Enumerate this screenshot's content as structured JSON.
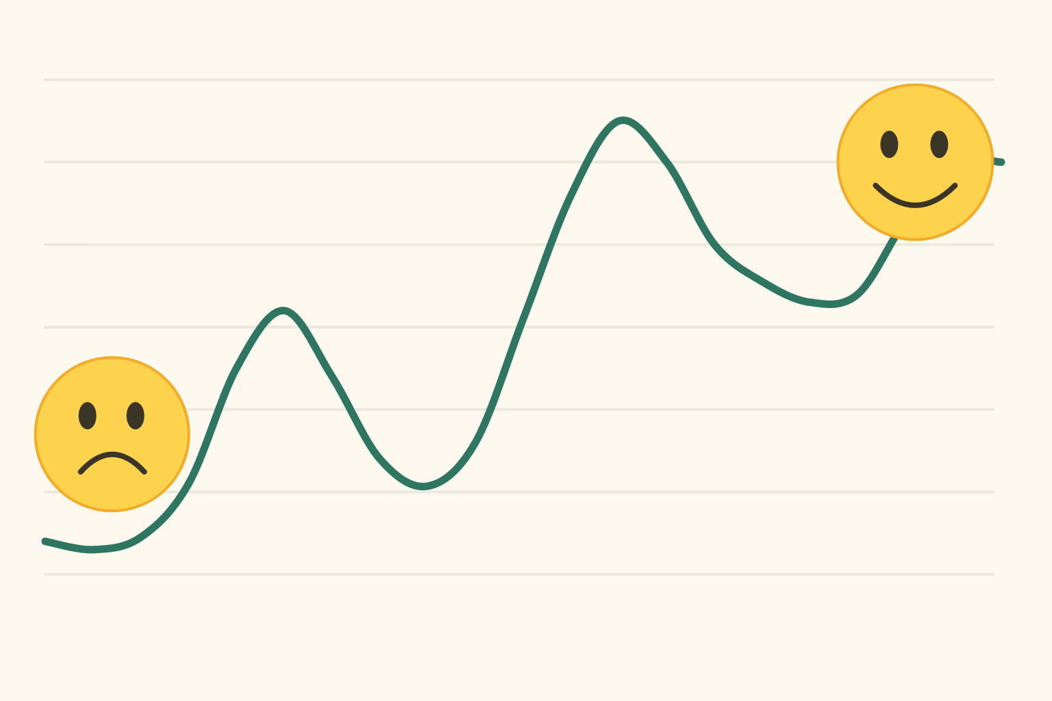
{
  "chart_data": {
    "type": "line",
    "title": "",
    "xlabel": "",
    "ylabel": "",
    "grid": true,
    "ylim": [
      0,
      7
    ],
    "gridlines_y": [
      1,
      2,
      3,
      4,
      5,
      6
    ],
    "x": [
      0,
      1,
      2,
      3,
      4,
      5,
      6,
      7,
      8,
      9,
      10,
      11,
      12,
      13,
      14,
      15,
      16,
      17,
      18,
      19,
      20
    ],
    "series": [
      {
        "values": [
          0.4,
          0.3,
          0.45,
          1.1,
          2.5,
          3.2,
          2.4,
          1.4,
          1.07,
          1.6,
          3.1,
          4.6,
          5.5,
          5.0,
          4.0,
          3.55,
          3.3,
          3.4,
          4.3,
          5.0,
          5.0
        ]
      }
    ]
  },
  "decorations": {
    "sad_face": {
      "icon": "sad-face-icon",
      "anchor_x": 1.4,
      "anchor_y": 1.7
    },
    "happy_face": {
      "icon": "happy-face-icon",
      "anchor_x": 18.2,
      "anchor_y": 5.0
    }
  },
  "colors": {
    "background": "#fdf9ee",
    "gridline": "#ebe8dc",
    "line": "#2e7562",
    "face_fill": "#fdd24c",
    "face_stroke": "#f2ac2a",
    "face_features": "#3a3527"
  }
}
